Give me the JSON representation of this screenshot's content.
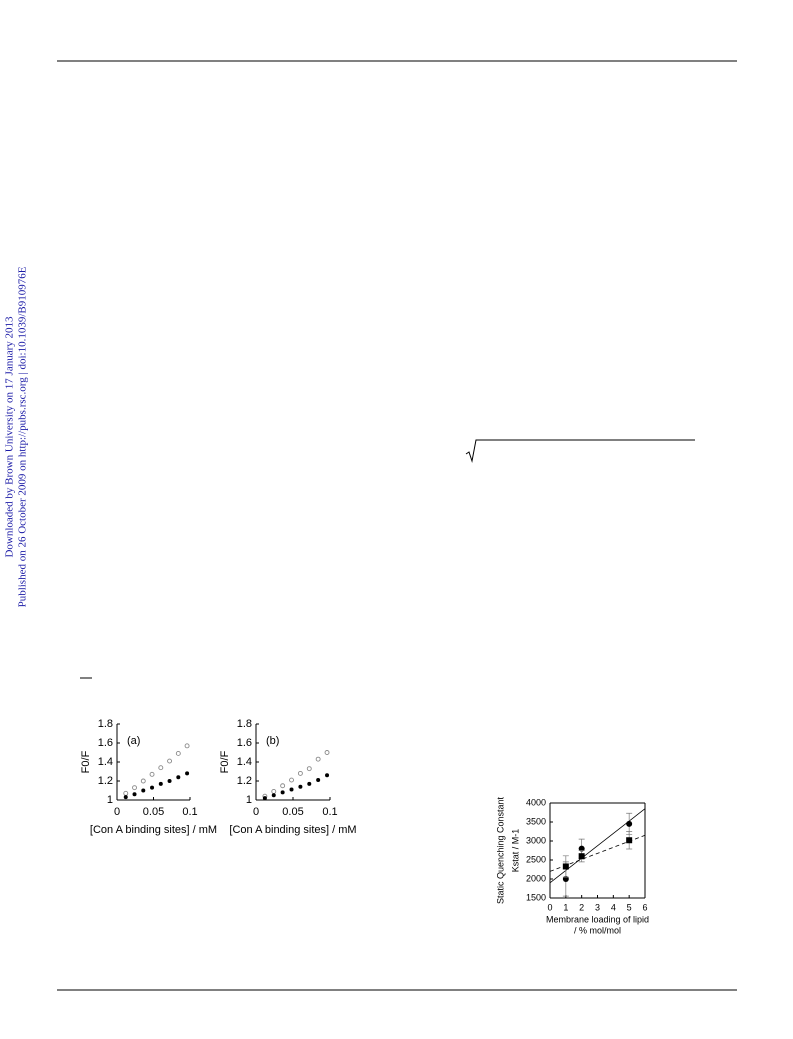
{
  "sidebar": {
    "downloaded": "Downloaded by Brown University on 17 January 2013",
    "published": "Published on 26 October 2009 on http://pubs.rsc.org | doi:10.1039/B910976E"
  },
  "chart_data": [
    {
      "type": "scatter",
      "panel": "(a)",
      "xlabel": "[Con A binding sites] / mM",
      "ylabel": "F0/F",
      "xlim": [
        0,
        0.1
      ],
      "xticks": [
        0,
        0.05,
        0.1
      ],
      "ylim": [
        1,
        1.8
      ],
      "yticks": [
        1,
        1.2,
        1.4,
        1.6,
        1.8
      ],
      "series": [
        {
          "marker": "open-circle",
          "color": "#8a8a8a",
          "x": [
            0.012,
            0.024,
            0.036,
            0.048,
            0.06,
            0.072,
            0.084,
            0.096
          ],
          "values": [
            1.07,
            1.13,
            1.2,
            1.27,
            1.34,
            1.41,
            1.49,
            1.57
          ]
        },
        {
          "marker": "filled-circle",
          "color": "#000000",
          "x": [
            0.012,
            0.024,
            0.036,
            0.048,
            0.06,
            0.072,
            0.084,
            0.096
          ],
          "values": [
            1.03,
            1.06,
            1.1,
            1.13,
            1.17,
            1.2,
            1.24,
            1.28
          ]
        }
      ]
    },
    {
      "type": "scatter",
      "panel": "(b)",
      "xlabel": "[Con A binding sites] / mM",
      "ylabel": "F0/F",
      "xlim": [
        0,
        0.1
      ],
      "xticks": [
        0,
        0.05,
        0.1
      ],
      "ylim": [
        1,
        1.8
      ],
      "yticks": [
        1,
        1.2,
        1.4,
        1.6,
        1.8
      ],
      "series": [
        {
          "marker": "open-circle",
          "color": "#8a8a8a",
          "x": [
            0.012,
            0.024,
            0.036,
            0.048,
            0.06,
            0.072,
            0.084,
            0.096
          ],
          "values": [
            1.04,
            1.09,
            1.15,
            1.21,
            1.28,
            1.33,
            1.43,
            1.5
          ]
        },
        {
          "marker": "filled-circle",
          "color": "#000000",
          "x": [
            0.012,
            0.024,
            0.036,
            0.048,
            0.06,
            0.072,
            0.084,
            0.096
          ],
          "values": [
            1.02,
            1.05,
            1.08,
            1.11,
            1.14,
            1.17,
            1.21,
            1.26
          ]
        }
      ]
    },
    {
      "type": "scatter",
      "xlabel": [
        "Membrane loading of lipid",
        "/ % mol/mol"
      ],
      "ylabel": [
        "Static Quenching Constant",
        "Kstat / M-1"
      ],
      "xlim": [
        0,
        6
      ],
      "xticks": [
        0,
        1,
        2,
        3,
        4,
        5,
        6
      ],
      "ylim": [
        1500,
        4000
      ],
      "yticks": [
        1500,
        2000,
        2500,
        3000,
        3500,
        4000
      ],
      "box": true,
      "series": [
        {
          "marker": "line",
          "line": "solid",
          "color": "#000000",
          "x": [
            0,
            6
          ],
          "values": [
            1900,
            3850
          ]
        },
        {
          "marker": "line",
          "line": "dashed",
          "color": "#000000",
          "x": [
            0,
            6
          ],
          "values": [
            2200,
            3150
          ]
        },
        {
          "marker": "filled-circle",
          "color": "#000000",
          "x": [
            1,
            2,
            5
          ],
          "values": [
            2000,
            2800,
            3450
          ],
          "errors": [
            450,
            250,
            280
          ]
        },
        {
          "marker": "filled-square",
          "color": "#000000",
          "x": [
            1,
            2,
            5
          ],
          "values": [
            2330,
            2600,
            3020
          ],
          "errors": [
            280,
            150,
            230
          ]
        }
      ]
    }
  ]
}
